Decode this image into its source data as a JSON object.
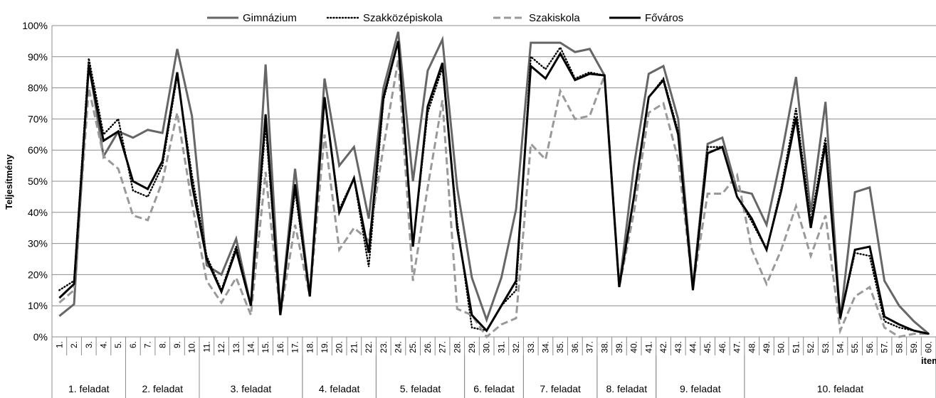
{
  "chart_data": {
    "type": "line",
    "ylabel": "Teljesítmény",
    "xlabel": "item",
    "ylim": [
      0,
      100
    ],
    "yticks": [
      "0%",
      "10%",
      "20%",
      "30%",
      "40%",
      "50%",
      "60%",
      "70%",
      "80%",
      "90%",
      "100%"
    ],
    "grid": "horizontal",
    "legend_position": "top",
    "x": [
      "1.",
      "2.",
      "3.",
      "4.",
      "5.",
      "6.",
      "7.",
      "8.",
      "9.",
      "10.",
      "11.",
      "12.",
      "13.",
      "14.",
      "15.",
      "16.",
      "17.",
      "18.",
      "19.",
      "20.",
      "21.",
      "22.",
      "23.",
      "24.",
      "25.",
      "26.",
      "27.",
      "28.",
      "29.",
      "30.",
      "31.",
      "32.",
      "33.",
      "34.",
      "35.",
      "36.",
      "37.",
      "38.",
      "39.",
      "40.",
      "41.",
      "42.",
      "43.",
      "44.",
      "45.",
      "46.",
      "47.",
      "48.",
      "49.",
      "50.",
      "51.",
      "52.",
      "53.",
      "54.",
      "55.",
      "56.",
      "57.",
      "58.",
      "59.",
      "60."
    ],
    "groups": [
      {
        "label": "1. feladat",
        "start": 1,
        "end": 5
      },
      {
        "label": "2. feladat",
        "start": 6,
        "end": 10
      },
      {
        "label": "3. feladat",
        "start": 11,
        "end": 17
      },
      {
        "label": "4. feladat",
        "start": 18,
        "end": 22
      },
      {
        "label": "5. feladat",
        "start": 23,
        "end": 28
      },
      {
        "label": "6. feladat",
        "start": 29,
        "end": 32
      },
      {
        "label": "7. feladat",
        "start": 33,
        "end": 37
      },
      {
        "label": "8. feladat",
        "start": 38,
        "end": 41
      },
      {
        "label": "9. feladat",
        "start": 42,
        "end": 47
      },
      {
        "label": "10. feladat",
        "start": 48,
        "end": 60
      }
    ],
    "series": [
      {
        "name": "Gimnázium",
        "color": "#666666",
        "style": "solid",
        "values": [
          6.7,
          10.5,
          88,
          58,
          66,
          64,
          66.5,
          65.5,
          92.5,
          71,
          23,
          20,
          31.5,
          10,
          87.5,
          7.5,
          54,
          13,
          83,
          55,
          61,
          38,
          80,
          98,
          50,
          85.5,
          95.5,
          48,
          19,
          5.5,
          19,
          41,
          94.5,
          94.5,
          94.5,
          91.5,
          92.5,
          84,
          16,
          55,
          84.5,
          87,
          70,
          16,
          62,
          64,
          47,
          46,
          36,
          58,
          83.5,
          40,
          75.5,
          5.5,
          46.5,
          48,
          18,
          10,
          5,
          1
        ]
      },
      {
        "name": "Szakközépiskola",
        "color": "#000000",
        "style": "dotted",
        "values": [
          15,
          18,
          89.5,
          65,
          70,
          47,
          45,
          55,
          84,
          52,
          26,
          15,
          29,
          10,
          68,
          8,
          47,
          13,
          77,
          41,
          51,
          22.5,
          76,
          95,
          29,
          72,
          86.5,
          37,
          3,
          2,
          10,
          15,
          90,
          86,
          93,
          83,
          85,
          84,
          16,
          45,
          77,
          83,
          66,
          16,
          61,
          61,
          45,
          37,
          28,
          48,
          73.5,
          37,
          64,
          6,
          27,
          26,
          5,
          3,
          2,
          1
        ]
      },
      {
        "name": "Szakiskola",
        "color": "#999999",
        "style": "dashed",
        "values": [
          11,
          15,
          80,
          58,
          54,
          39,
          37.5,
          50,
          72,
          43,
          18,
          11,
          19,
          7,
          53,
          7,
          36,
          13,
          65,
          28,
          35,
          31,
          61,
          89,
          18,
          48,
          76,
          9,
          7,
          0,
          4,
          6,
          62,
          57,
          79,
          70,
          71,
          84,
          16,
          40,
          72,
          75,
          57,
          16,
          46,
          46,
          52,
          28,
          17,
          28,
          42,
          26,
          39,
          2,
          13,
          16,
          3,
          0,
          1,
          1
        ]
      },
      {
        "name": "Főváros",
        "color": "#000000",
        "style": "solid-thick",
        "values": [
          12.5,
          17,
          87,
          63,
          66,
          50,
          47.5,
          56.5,
          85,
          49,
          25,
          14.5,
          28,
          10,
          71.5,
          7,
          49,
          13,
          77,
          40,
          51,
          27,
          77,
          95,
          29,
          74,
          88,
          35,
          7,
          2,
          10,
          18,
          87,
          83,
          91,
          82.5,
          84.5,
          84,
          16,
          45,
          77,
          82.5,
          65,
          15,
          59,
          61,
          45,
          38,
          28,
          47,
          70.5,
          35,
          62,
          6,
          28,
          29,
          6.5,
          4,
          2,
          1
        ]
      }
    ]
  }
}
